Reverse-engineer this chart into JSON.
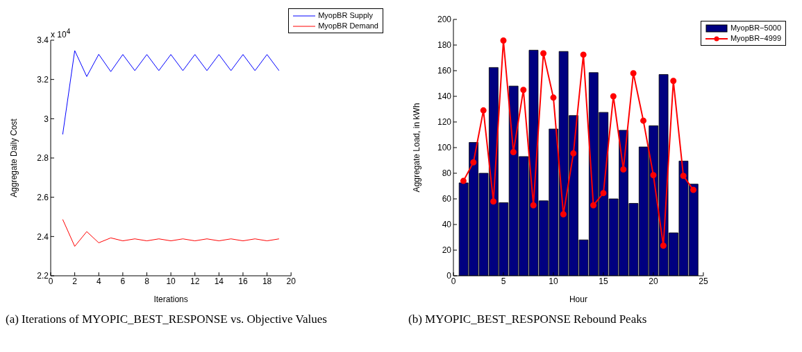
{
  "chart_data": [
    {
      "type": "line",
      "xlabel": "Iterations",
      "ylabel": "Aggregate Daily Cost",
      "x": [
        1,
        2,
        3,
        4,
        5,
        6,
        7,
        8,
        9,
        10,
        11,
        12,
        13,
        14,
        15,
        16,
        17,
        18,
        19
      ],
      "series": [
        {
          "name": "MyopBR Supply",
          "color": "#0000ff",
          "values": [
            2.92,
            3.347,
            3.215,
            3.328,
            3.24,
            3.327,
            3.245,
            3.327,
            3.245,
            3.327,
            3.245,
            3.327,
            3.245,
            3.327,
            3.245,
            3.327,
            3.245,
            3.327,
            3.245
          ]
        },
        {
          "name": "MyopBR Demand",
          "color": "#ff0000",
          "values": [
            2.487,
            2.35,
            2.425,
            2.368,
            2.393,
            2.378,
            2.388,
            2.378,
            2.388,
            2.378,
            2.388,
            2.378,
            2.388,
            2.378,
            2.388,
            2.378,
            2.388,
            2.378,
            2.388
          ]
        }
      ],
      "xlim": [
        0,
        20
      ],
      "xticks": [
        0,
        2,
        4,
        6,
        8,
        10,
        12,
        14,
        16,
        18,
        20
      ],
      "ylim": [
        2.2,
        3.4
      ],
      "yticks": [
        2.2,
        2.4,
        2.6,
        2.8,
        3,
        3.2,
        3.4
      ],
      "marker": "none",
      "legend": "top right",
      "annotations": [
        "x 10$^{4}$",
        "(a) Iterations of MYOPIC_BEST_RESPONSE vs. Objective Values"
      ]
    },
    {
      "type": "bar",
      "xlabel": "Hour",
      "ylabel": "Aggregate Load, in kWh",
      "x": [
        1,
        2,
        3,
        4,
        5,
        6,
        7,
        8,
        9,
        10,
        11,
        12,
        13,
        14,
        15,
        16,
        17,
        18,
        19,
        20,
        21,
        22,
        23,
        24
      ],
      "series": [
        {
          "name": "MyopBR−5000",
          "color": "#000080",
          "values": [
            72.5,
            104,
            80,
            162.5,
            57,
            148,
            93,
            176,
            58.5,
            114.5,
            175,
            125,
            28,
            158.5,
            127.5,
            60,
            113.5,
            56.5,
            100.5,
            117,
            157,
            33.5,
            89.5,
            71.5
          ]
        },
        {
          "name": "MyopBR−4999",
          "type": "line",
          "marker": "circle",
          "color": "#ff0000",
          "values": [
            74,
            88.5,
            129,
            58,
            183.5,
            96.5,
            145,
            55,
            173.5,
            139,
            48,
            95.5,
            172.5,
            55,
            64.5,
            140,
            83,
            158,
            121,
            78.5,
            23.5,
            152,
            78,
            67
          ]
        }
      ],
      "xlim": [
        0,
        25
      ],
      "xticks": [
        0,
        5,
        10,
        15,
        20,
        25
      ],
      "ylim": [
        0,
        200
      ],
      "yticks": [
        0,
        20,
        40,
        60,
        80,
        100,
        120,
        140,
        160,
        180,
        200
      ],
      "legend": "top right",
      "annotations": [
        "(b) MYOPIC_BEST_RESPONSE Rebound Peaks"
      ]
    }
  ]
}
